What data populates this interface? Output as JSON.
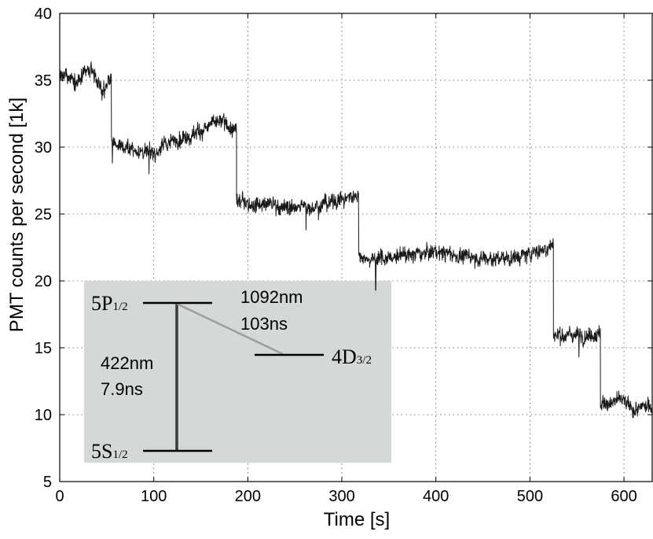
{
  "chart_data": {
    "type": "line",
    "xlabel": "Time [s]",
    "ylabel": "PMT counts per second  [1k]",
    "xlim": [
      0,
      630
    ],
    "ylim": [
      5,
      40
    ],
    "x_ticks": [
      0,
      100,
      200,
      300,
      400,
      500,
      600
    ],
    "y_ticks": [
      5,
      10,
      15,
      20,
      25,
      30,
      35,
      40
    ],
    "grid": true,
    "series": [
      {
        "name": "PMT counts",
        "color": "#1a1a1a",
        "noise_amplitude": 0.55,
        "segments": [
          {
            "t_start": 0,
            "t_end": 55,
            "points": [
              [
                0,
                35.3
              ],
              [
                20,
                35.0
              ],
              [
                35,
                35.6
              ],
              [
                45,
                34.2
              ],
              [
                55,
                35.2
              ]
            ]
          },
          {
            "t_start": 55,
            "t_end": 188,
            "points": [
              [
                55,
                30.3
              ],
              [
                80,
                29.8
              ],
              [
                100,
                29.6
              ],
              [
                120,
                30.5
              ],
              [
                140,
                31.0
              ],
              [
                160,
                31.6
              ],
              [
                175,
                31.8
              ],
              [
                188,
                31.0
              ]
            ]
          },
          {
            "t_start": 188,
            "t_end": 318,
            "points": [
              [
                188,
                26.0
              ],
              [
                220,
                25.8
              ],
              [
                250,
                25.4
              ],
              [
                280,
                25.8
              ],
              [
                318,
                26.4
              ]
            ]
          },
          {
            "t_start": 318,
            "t_end": 525,
            "points": [
              [
                318,
                21.8
              ],
              [
                350,
                21.7
              ],
              [
                380,
                22.0
              ],
              [
                400,
                22.2
              ],
              [
                430,
                21.8
              ],
              [
                460,
                21.7
              ],
              [
                490,
                21.8
              ],
              [
                510,
                22.3
              ],
              [
                525,
                22.7
              ]
            ]
          },
          {
            "t_start": 525,
            "t_end": 575,
            "points": [
              [
                525,
                16.0
              ],
              [
                550,
                16.0
              ],
              [
                575,
                16.2
              ]
            ]
          },
          {
            "t_start": 575,
            "t_end": 630,
            "points": [
              [
                575,
                10.7
              ],
              [
                595,
                11.1
              ],
              [
                610,
                10.3
              ],
              [
                630,
                10.6
              ]
            ]
          }
        ],
        "spikes": [
          [
            56,
            28.8
          ],
          [
            95,
            28.0
          ],
          [
            262,
            23.8
          ],
          [
            336,
            19.3
          ],
          [
            552,
            14.3
          ]
        ]
      }
    ],
    "inset": {
      "background": "#d2d9d7",
      "levels": [
        {
          "main": "5P",
          "sub": "1/2"
        },
        {
          "main": "5S",
          "sub": "1/2"
        },
        {
          "main": "4D",
          "sub": "3/2"
        }
      ],
      "transition_strong": {
        "wavelength": "422nm",
        "lifetime": "7.9ns"
      },
      "transition_weak": {
        "wavelength": "1092nm",
        "lifetime": "103ns"
      }
    }
  }
}
